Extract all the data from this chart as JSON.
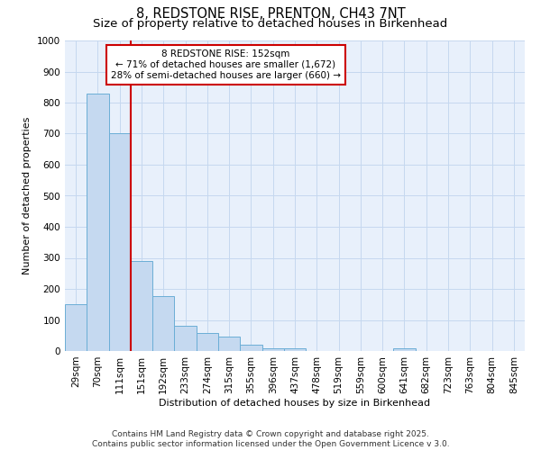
{
  "title_line1": "8, REDSTONE RISE, PRENTON, CH43 7NT",
  "title_line2": "Size of property relative to detached houses in Birkenhead",
  "xlabel": "Distribution of detached houses by size in Birkenhead",
  "ylabel": "Number of detached properties",
  "bar_values": [
    150,
    830,
    700,
    290,
    178,
    82,
    57,
    45,
    20,
    10,
    10,
    0,
    0,
    0,
    0,
    8,
    0,
    0,
    0,
    0,
    0
  ],
  "categories": [
    "29sqm",
    "70sqm",
    "111sqm",
    "151sqm",
    "192sqm",
    "233sqm",
    "274sqm",
    "315sqm",
    "355sqm",
    "396sqm",
    "437sqm",
    "478sqm",
    "519sqm",
    "559sqm",
    "600sqm",
    "641sqm",
    "682sqm",
    "723sqm",
    "763sqm",
    "804sqm",
    "845sqm"
  ],
  "bar_color": "#c5d9f0",
  "bar_edge_color": "#6baed6",
  "bar_edge_width": 0.7,
  "redline_x": 2.5,
  "redline_color": "#cc0000",
  "annotation_text": "8 REDSTONE RISE: 152sqm\n← 71% of detached houses are smaller (1,672)\n28% of semi-detached houses are larger (660) →",
  "annotation_box_color": "#ffffff",
  "annotation_edge_color": "#cc0000",
  "ylim": [
    0,
    1000
  ],
  "yticks": [
    0,
    100,
    200,
    300,
    400,
    500,
    600,
    700,
    800,
    900,
    1000
  ],
  "grid_color": "#c5d8ef",
  "background_color": "#e8f0fb",
  "footer_line1": "Contains HM Land Registry data © Crown copyright and database right 2025.",
  "footer_line2": "Contains public sector information licensed under the Open Government Licence v 3.0.",
  "title_fontsize": 10.5,
  "subtitle_fontsize": 9.5,
  "axis_label_fontsize": 8,
  "tick_fontsize": 7.5,
  "annotation_fontsize": 7.5,
  "footer_fontsize": 6.5
}
